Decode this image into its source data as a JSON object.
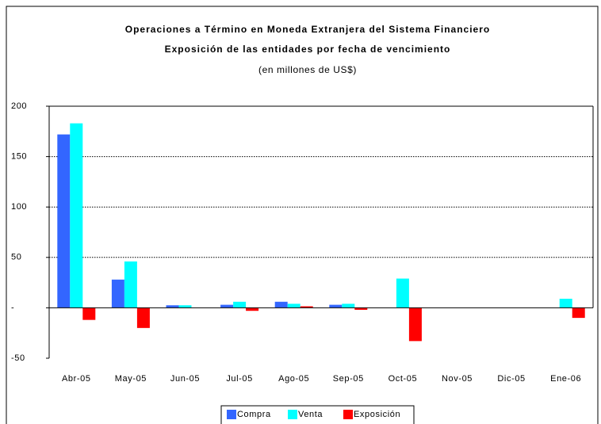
{
  "chart_data": {
    "type": "bar",
    "title": "Operaciones a Término en Moneda Extranjera del Sistema Financiero",
    "subtitle": "Exposición de las entidades por fecha de vencimiento",
    "note": "(en millones de US$)",
    "categories": [
      "Abr-05",
      "May-05",
      "Jun-05",
      "Jul-05",
      "Ago-05",
      "Sep-05",
      "Oct-05",
      "Nov-05",
      "Dic-05",
      "Ene-06"
    ],
    "series": [
      {
        "name": "Compra",
        "color": "#3366ff",
        "values": [
          172,
          28,
          2.5,
          3,
          6,
          3,
          0,
          0,
          0,
          0
        ]
      },
      {
        "name": "Venta",
        "color": "#00ffff",
        "values": [
          183,
          46,
          2.5,
          6,
          4,
          4,
          29,
          0,
          0,
          9
        ]
      },
      {
        "name": "Exposición",
        "color": "#ff0000",
        "values": [
          -12,
          -20,
          0,
          -3,
          1.5,
          -2,
          -33,
          0,
          0,
          -10
        ]
      }
    ],
    "ylim": [
      -50,
      200
    ],
    "yticks": [
      -50,
      {
        "value": 0,
        "label": "-"
      },
      50,
      100,
      150,
      200
    ],
    "grid": true,
    "legend": "bottom"
  }
}
